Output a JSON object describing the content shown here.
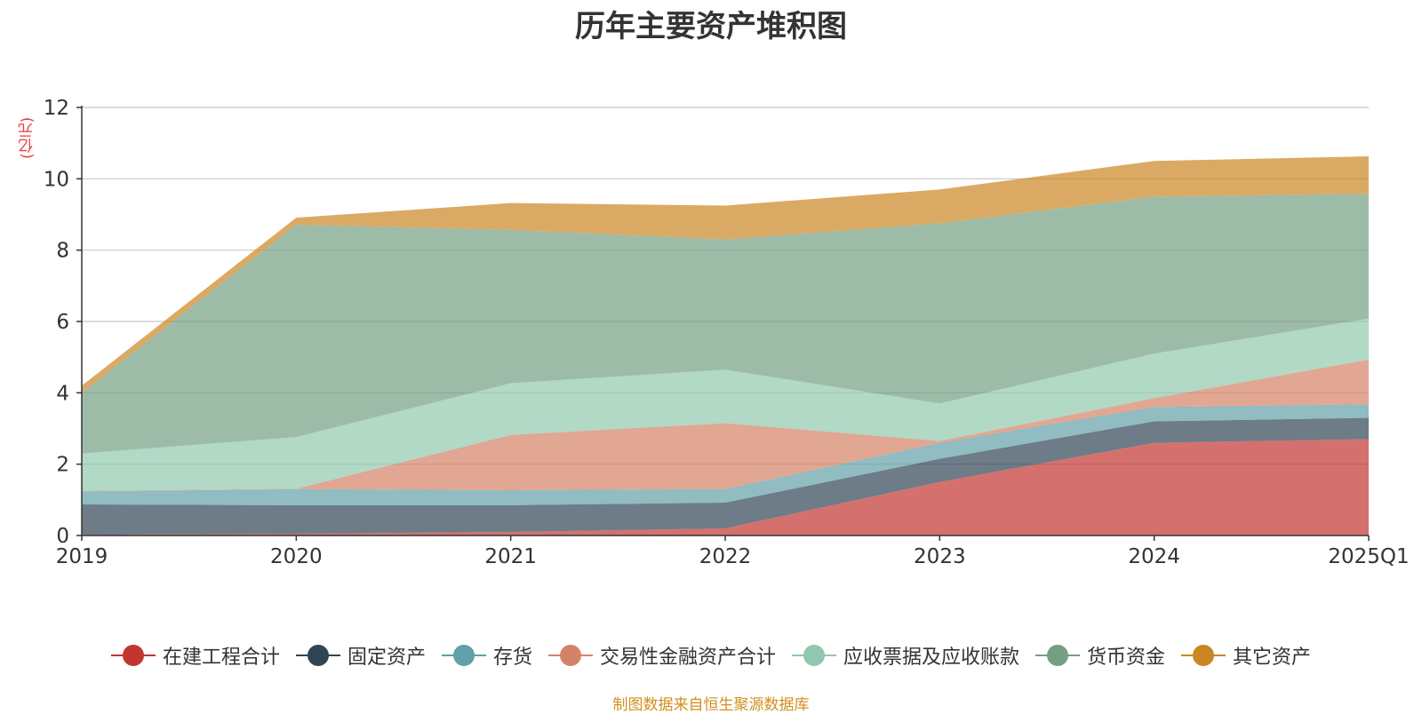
{
  "chart_data": {
    "type": "area",
    "title": "历年主要资产堆积图",
    "unit_label": "(亿元)",
    "categories": [
      "2019",
      "2020",
      "2021",
      "2022",
      "2023",
      "2024",
      "2025Q1"
    ],
    "ylim": [
      0,
      12
    ],
    "yticks": [
      0,
      2,
      4,
      6,
      8,
      10,
      12
    ],
    "grid": true,
    "stacked": true,
    "legend_position": "bottom",
    "series": [
      {
        "name": "在建工程合计",
        "color": "#c23531",
        "values": [
          0.02,
          0.05,
          0.1,
          0.2,
          1.5,
          2.6,
          2.7
        ]
      },
      {
        "name": "固定资产",
        "color": "#2f4554",
        "values": [
          0.85,
          0.8,
          0.75,
          0.72,
          0.65,
          0.6,
          0.6
        ]
      },
      {
        "name": "存货",
        "color": "#61a0a8",
        "values": [
          0.37,
          0.45,
          0.42,
          0.38,
          0.45,
          0.4,
          0.38
        ]
      },
      {
        "name": "交易性金融资产合计",
        "color": "#d48265",
        "values": [
          0.01,
          0.01,
          1.55,
          1.85,
          0.05,
          0.25,
          1.25
        ]
      },
      {
        "name": "应收票据及应收账款",
        "color": "#91c7ae",
        "values": [
          1.05,
          1.45,
          1.45,
          1.5,
          1.05,
          1.25,
          1.15
        ]
      },
      {
        "name": "货币资金",
        "color": "#749f83",
        "values": [
          1.7,
          5.95,
          4.3,
          3.65,
          5.05,
          4.4,
          3.5
        ]
      },
      {
        "name": "其它资产",
        "color": "#ca8622",
        "values": [
          0.2,
          0.2,
          0.75,
          0.95,
          0.95,
          1.0,
          1.05
        ]
      }
    ]
  },
  "source_note": "制图数据来自恒生聚源数据库"
}
